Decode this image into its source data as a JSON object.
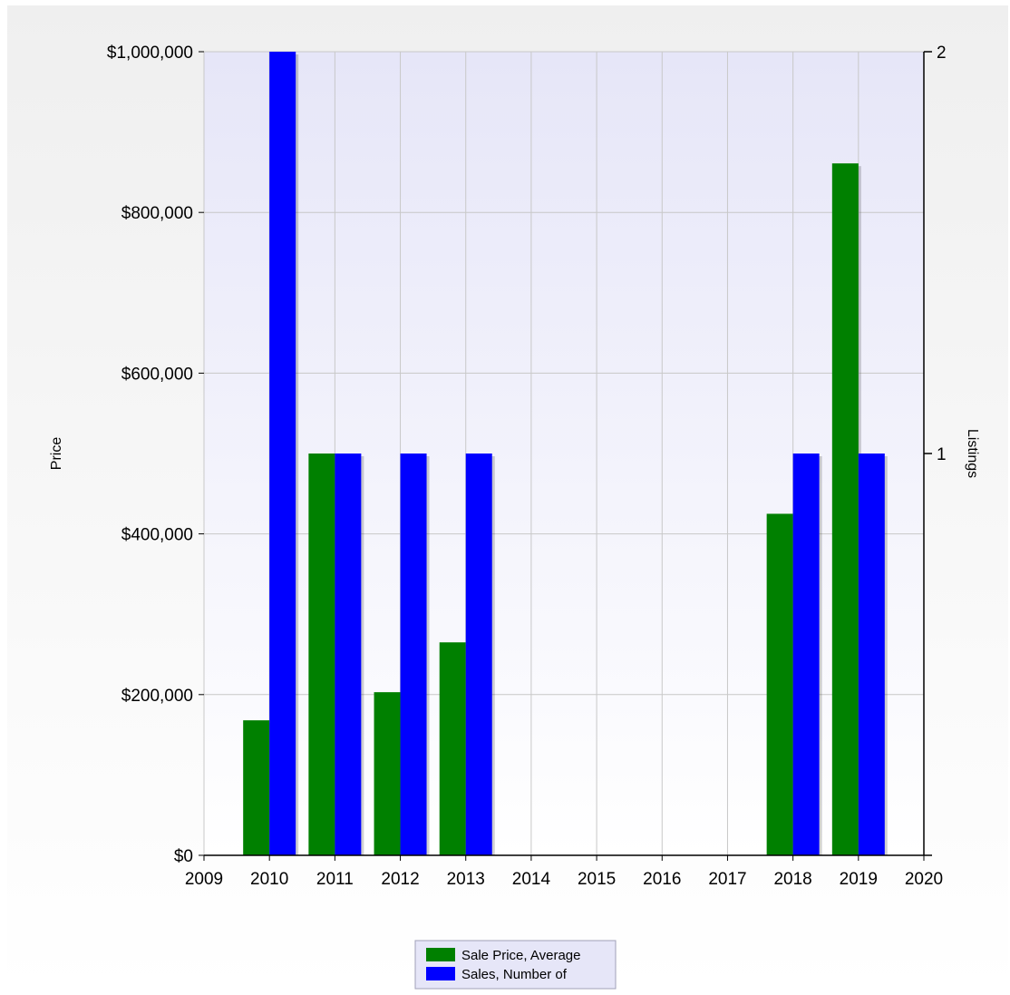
{
  "chart_data": {
    "type": "bar",
    "x_ticks": [
      "2009",
      "2010",
      "2011",
      "2012",
      "2013",
      "2014",
      "2015",
      "2016",
      "2017",
      "2018",
      "2019",
      "2020"
    ],
    "categories": [
      "2010",
      "2011",
      "2012",
      "2013",
      "2018",
      "2019"
    ],
    "series": [
      {
        "name": "Sale Price, Average",
        "axis": "left",
        "color": "#008000",
        "values": [
          168000,
          500000,
          203000,
          265000,
          425000,
          861000
        ]
      },
      {
        "name": "Sales, Number of",
        "axis": "right",
        "color": "#0000ff",
        "values": [
          2,
          1,
          1,
          1,
          1,
          1
        ]
      }
    ],
    "left_axis": {
      "label": "Price",
      "range": [
        0,
        1000000
      ],
      "tick_labels": [
        "$0",
        "$200,000",
        "$400,000",
        "$600,000",
        "$800,000",
        "$1,000,000"
      ]
    },
    "right_axis": {
      "label": "Listings",
      "range": [
        0,
        2
      ],
      "tick_labels": [
        "1",
        "2"
      ]
    },
    "x_range": [
      2009,
      2020
    ],
    "grid": true,
    "legend_position": "bottom-center",
    "colors": {
      "plot_bg_top": "#e6e6f8",
      "plot_bg_bottom": "#ffffff",
      "page_bg_top": "#efefef",
      "page_bg_bottom": "#ffffff",
      "grid": "#c8c8c8",
      "axis": "#000000",
      "legend_bg": "#e6e6f8"
    }
  }
}
